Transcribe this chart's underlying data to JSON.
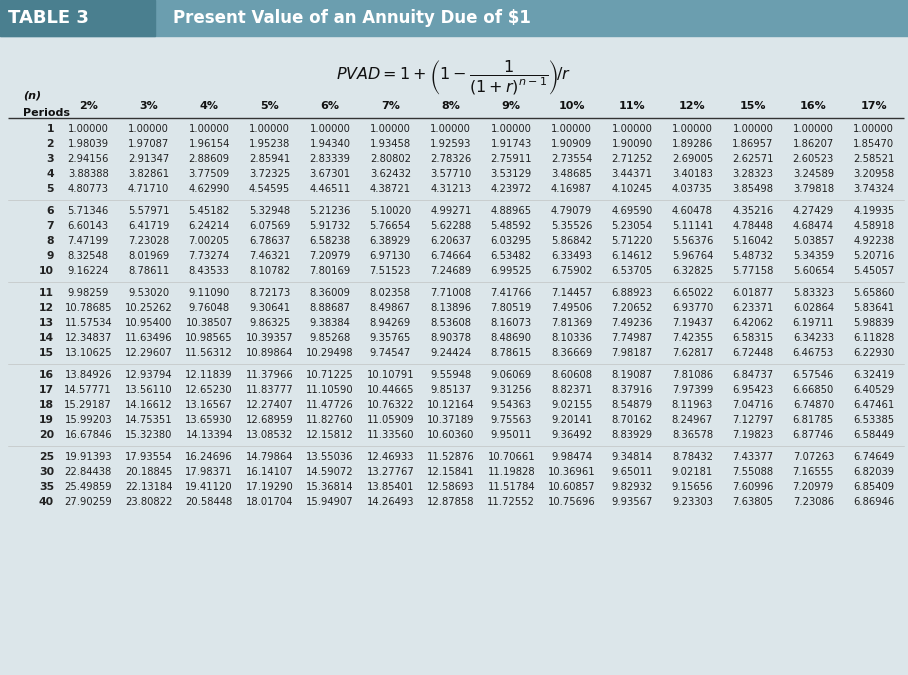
{
  "title_left": "TABLE 3",
  "title_right": "Present Value of an Annuity Due of $1",
  "header_bg_color": "#6b9eaf",
  "header_dark_color": "#4a7f8f",
  "table_bg_light": "#dce6ea",
  "columns": [
    "(n)\nPeriods",
    "2%",
    "3%",
    "4%",
    "5%",
    "6%",
    "7%",
    "8%",
    "9%",
    "10%",
    "11%",
    "12%",
    "15%",
    "16%",
    "17%"
  ],
  "rows": [
    [
      1,
      1.0,
      1.0,
      1.0,
      1.0,
      1.0,
      1.0,
      1.0,
      1.0,
      1.0,
      1.0,
      1.0,
      1.0,
      1.0,
      1.0
    ],
    [
      2,
      1.98039,
      1.97087,
      1.96154,
      1.95238,
      1.9434,
      1.93458,
      1.92593,
      1.91743,
      1.90909,
      1.9009,
      1.89286,
      1.86957,
      1.86207,
      1.8547
    ],
    [
      3,
      2.94156,
      2.91347,
      2.88609,
      2.85941,
      2.83339,
      2.80802,
      2.78326,
      2.75911,
      2.73554,
      2.71252,
      2.69005,
      2.62571,
      2.60523,
      2.58521
    ],
    [
      4,
      3.88388,
      3.82861,
      3.77509,
      3.72325,
      3.67301,
      3.62432,
      3.5771,
      3.53129,
      3.48685,
      3.44371,
      3.40183,
      3.28323,
      3.24589,
      3.20958
    ],
    [
      5,
      4.80773,
      4.7171,
      4.6299,
      4.54595,
      4.46511,
      4.38721,
      4.31213,
      4.23972,
      4.16987,
      4.10245,
      4.03735,
      3.85498,
      3.79818,
      3.74324
    ],
    [
      6,
      5.71346,
      5.57971,
      5.45182,
      5.32948,
      5.21236,
      5.1002,
      4.99271,
      4.88965,
      4.79079,
      4.6959,
      4.60478,
      4.35216,
      4.27429,
      4.19935
    ],
    [
      7,
      6.60143,
      6.41719,
      6.24214,
      6.07569,
      5.91732,
      5.76654,
      5.62288,
      5.48592,
      5.35526,
      5.23054,
      5.11141,
      4.78448,
      4.68474,
      4.58918
    ],
    [
      8,
      7.47199,
      7.23028,
      7.00205,
      6.78637,
      6.58238,
      6.38929,
      6.20637,
      6.03295,
      5.86842,
      5.7122,
      5.56376,
      5.16042,
      5.03857,
      4.92238
    ],
    [
      9,
      8.32548,
      8.01969,
      7.73274,
      7.46321,
      7.20979,
      6.9713,
      6.74664,
      6.53482,
      6.33493,
      6.14612,
      5.96764,
      5.48732,
      5.34359,
      5.20716
    ],
    [
      10,
      9.16224,
      8.78611,
      8.43533,
      8.10782,
      7.80169,
      7.51523,
      7.24689,
      6.99525,
      6.75902,
      6.53705,
      6.32825,
      5.77158,
      5.60654,
      5.45057
    ],
    [
      11,
      9.98259,
      9.5302,
      9.1109,
      8.72173,
      8.36009,
      8.02358,
      7.71008,
      7.41766,
      7.14457,
      6.88923,
      6.65022,
      6.01877,
      5.83323,
      5.6586
    ],
    [
      12,
      10.78685,
      10.25262,
      9.76048,
      9.30641,
      8.88687,
      8.49867,
      8.13896,
      7.80519,
      7.49506,
      7.20652,
      6.9377,
      6.23371,
      6.02864,
      5.83641
    ],
    [
      13,
      11.57534,
      10.954,
      10.38507,
      9.86325,
      9.38384,
      8.94269,
      8.53608,
      8.16073,
      7.81369,
      7.49236,
      7.19437,
      6.42062,
      6.19711,
      5.98839
    ],
    [
      14,
      12.34837,
      11.63496,
      10.98565,
      10.39357,
      9.85268,
      9.35765,
      8.90378,
      8.4869,
      8.10336,
      7.74987,
      7.42355,
      6.58315,
      6.34233,
      6.11828
    ],
    [
      15,
      13.10625,
      12.29607,
      11.56312,
      10.89864,
      10.29498,
      9.74547,
      9.24424,
      8.78615,
      8.36669,
      7.98187,
      7.62817,
      6.72448,
      6.46753,
      6.2293
    ],
    [
      16,
      13.84926,
      12.93794,
      12.11839,
      11.37966,
      10.71225,
      10.10791,
      9.55948,
      9.06069,
      8.60608,
      8.19087,
      7.81086,
      6.84737,
      6.57546,
      6.32419
    ],
    [
      17,
      14.57771,
      13.5611,
      12.6523,
      11.83777,
      11.1059,
      10.44665,
      9.85137,
      9.31256,
      8.82371,
      8.37916,
      7.97399,
      6.95423,
      6.6685,
      6.40529
    ],
    [
      18,
      15.29187,
      14.16612,
      13.16567,
      12.27407,
      11.47726,
      10.76322,
      10.12164,
      9.54363,
      9.02155,
      8.54879,
      8.11963,
      7.04716,
      6.7487,
      6.47461
    ],
    [
      19,
      15.99203,
      14.75351,
      13.6593,
      12.68959,
      11.8276,
      11.05909,
      10.37189,
      9.75563,
      9.20141,
      8.70162,
      8.24967,
      7.12797,
      6.81785,
      6.53385
    ],
    [
      20,
      16.67846,
      15.3238,
      14.13394,
      13.08532,
      12.15812,
      11.3356,
      10.6036,
      9.95011,
      9.36492,
      8.83929,
      8.36578,
      7.19823,
      6.87746,
      6.58449
    ],
    [
      25,
      19.91393,
      17.93554,
      16.24696,
      14.79864,
      13.55036,
      12.46933,
      11.52876,
      10.70661,
      9.98474,
      9.34814,
      8.78432,
      7.43377,
      7.07263,
      6.74649
    ],
    [
      30,
      22.84438,
      20.18845,
      17.98371,
      16.14107,
      14.59072,
      13.27767,
      12.15841,
      11.19828,
      10.36961,
      9.65011,
      9.02181,
      7.55088,
      7.16555,
      6.82039
    ],
    [
      35,
      25.49859,
      22.13184,
      19.4112,
      17.1929,
      15.36814,
      13.85401,
      12.58693,
      11.51784,
      10.60857,
      9.82932,
      9.15656,
      7.60996,
      7.20979,
      6.85409
    ],
    [
      40,
      27.90259,
      23.80822,
      20.58448,
      18.01704,
      15.94907,
      14.26493,
      12.87858,
      11.72552,
      10.75696,
      9.93567,
      9.23303,
      7.63805,
      7.23086,
      6.86946
    ]
  ],
  "separator_after_periods": [
    5,
    10,
    15,
    20
  ]
}
